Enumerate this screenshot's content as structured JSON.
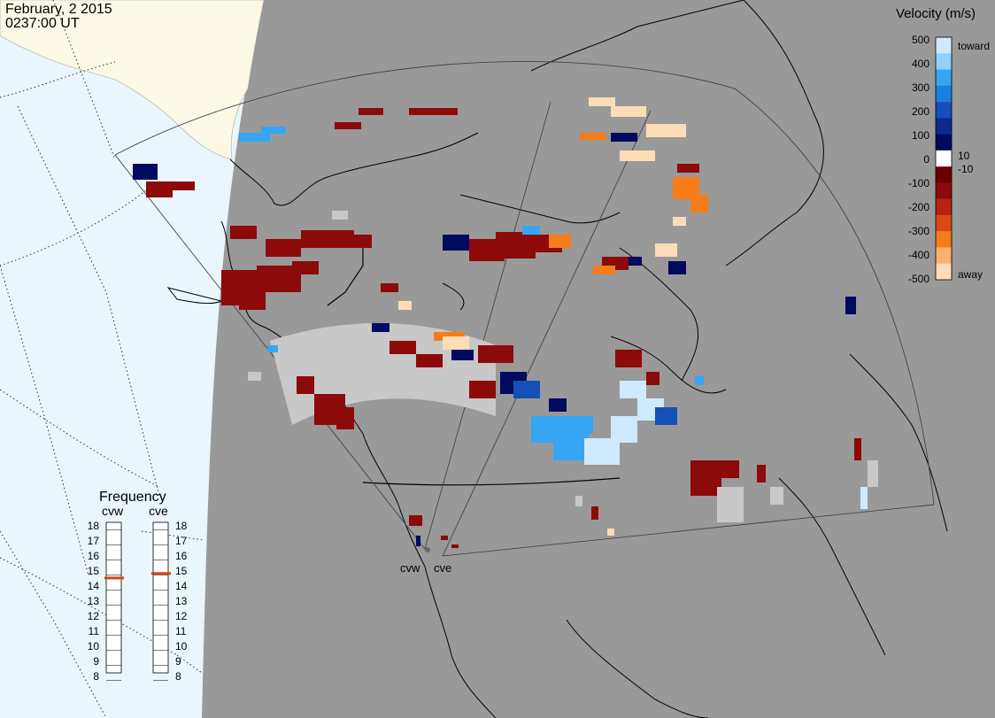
{
  "header": {
    "date": "February, 2 2015",
    "time": "0237:00 UT"
  },
  "colors": {
    "background_gray": "#999999",
    "land_white": "#ffffff",
    "ocean_blue": "#e8f4fb",
    "ice_cream": "#fbf8e6",
    "ground_scatter": "#c8c8c8"
  },
  "velocity_legend": {
    "title": "Velocity (m/s)",
    "top_label": "toward",
    "bottom_label": "away",
    "ticks": [
      "500",
      "400",
      "300",
      "200",
      "100",
      "10",
      "0",
      "-10",
      "-100",
      "-200",
      "-300",
      "-400",
      "-500"
    ],
    "colorbar": [
      "#cfeaff",
      "#8fd0ff",
      "#36a5f4",
      "#1a7fe0",
      "#1550b8",
      "#0d2a8c",
      "#000a5e",
      "#ffffff",
      "#6b0000",
      "#8c0a0a",
      "#b52410",
      "#d94a12",
      "#f57c18",
      "#fbb070",
      "#fddcb8"
    ]
  },
  "frequency_legend": {
    "title": "Frequency",
    "radars": [
      {
        "name": "cvw",
        "freq_mhz": 14.8
      },
      {
        "name": "cve",
        "freq_mhz": 15.1
      }
    ],
    "ticks": [
      "18",
      "17",
      "16",
      "15",
      "14",
      "13",
      "12",
      "11",
      "10",
      "9",
      "8"
    ],
    "marker_color": "#d84315"
  },
  "radar_sites": [
    {
      "name": "cvw"
    },
    {
      "name": "cve"
    }
  ]
}
